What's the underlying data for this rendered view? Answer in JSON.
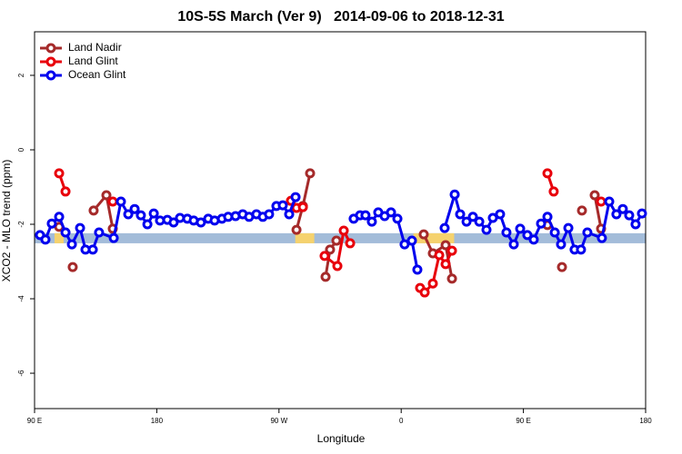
{
  "chart_data": {
    "type": "line",
    "title": "10S-5S March (Ver 9)   2014-09-06 to 2018-12-31",
    "xlabel": "Longitude",
    "ylabel": "XCO2 - MLO trend (ppm)",
    "xlim": [
      90,
      540
    ],
    "ylim": [
      -6.95,
      3.17
    ],
    "xticks": [
      {
        "value": 90,
        "label": "90 E"
      },
      {
        "value": 180,
        "label": "180"
      },
      {
        "value": 270,
        "label": "90 W"
      },
      {
        "value": 360,
        "label": "0"
      },
      {
        "value": 450,
        "label": "90 E"
      },
      {
        "value": 540,
        "label": "180"
      }
    ],
    "yticks": [
      2,
      0,
      -2,
      -4,
      -6
    ],
    "legend": "top-left",
    "band": {
      "range": [
        -2.51,
        -2.24
      ],
      "color": "#a3bcd9"
    },
    "highlights": [
      {
        "x": [
          104.7,
          111.4
        ],
        "color": "#f5d26e"
      },
      {
        "x": [
          282,
          296
        ],
        "color": "#f5d26e"
      },
      {
        "x": [
          369,
          399
        ],
        "color": "#f5d26e"
      }
    ],
    "series": [
      {
        "name": "Land Nadir",
        "color": "#a52a2a",
        "x": [
          108.1,
          null,
          118.1,
          null,
          133.5,
          142.9,
          147.6,
          null,
          282.9,
          287.6,
          292.9,
          null,
          304.3,
          307.6,
          312.3,
          null,
          376.6,
          383.3,
          392.7,
          397.4,
          null,
          467.7,
          null,
          478.4,
          null,
          493.1,
          null,
          502.5,
          507.2
        ],
        "values": [
          -2.07,
          null,
          -3.15,
          null,
          -1.63,
          -1.22,
          -2.12,
          null,
          -2.15,
          -1.51,
          -0.63,
          null,
          -3.41,
          -2.68,
          -2.44,
          null,
          -2.27,
          -2.78,
          -2.56,
          -3.46,
          null,
          -2.02,
          null,
          -3.15,
          null,
          -1.63,
          null,
          -1.22,
          -2.12
        ]
      },
      {
        "name": "Land Glint",
        "color": "#e8000b",
        "x": [
          108.1,
          112.8,
          null,
          147.6,
          null,
          278.8,
          282.9,
          287.6,
          null,
          303.6,
          313.0,
          317.7,
          322.4,
          null,
          373.9,
          377.3,
          383.3,
          388.0,
          392.7,
          397.4,
          null,
          467.7,
          472.3,
          null,
          507.2
        ],
        "values": [
          -0.63,
          -1.12,
          null,
          -1.39,
          null,
          -1.37,
          -1.56,
          -1.54,
          null,
          -2.85,
          -3.12,
          -2.17,
          -2.51,
          null,
          -3.71,
          -3.83,
          -3.59,
          -2.83,
          -3.07,
          -2.71,
          null,
          -0.63,
          -1.12,
          null,
          -1.39
        ]
      },
      {
        "name": "Ocean Glint",
        "color": "#0000ee",
        "x": [
          94.0,
          98.0,
          102.7,
          108.1,
          112.8,
          117.5,
          123.5,
          127.5,
          132.9,
          137.5,
          148.3,
          153.6,
          159.0,
          163.7,
          168.3,
          173.1,
          177.8,
          182.4,
          187.8,
          192.4,
          197.1,
          202.5,
          207.2,
          212.5,
          217.9,
          222.6,
          228.0,
          232.6,
          238.0,
          243.3,
          248.0,
          253.4,
          258.1,
          262.7,
          268.1,
          272.8,
          277.5,
          282.2,
          null,
          325.0,
          329.7,
          333.7,
          338.4,
          343.1,
          347.8,
          352.5,
          357.2,
          362.5,
          367.9,
          371.9,
          null,
          392.0,
          399.4,
          403.4,
          408.1,
          412.8,
          417.5,
          422.8,
          427.5,
          432.8,
          437.5,
          442.9,
          447.6,
          452.9,
          457.6,
          463.0,
          467.7,
          473.1,
          477.7,
          483.1,
          487.7,
          492.4,
          497.1,
          507.8,
          513.2,
          518.5,
          523.2,
          527.9,
          532.6,
          537.3
        ],
        "values": [
          -2.29,
          -2.41,
          -1.98,
          -1.8,
          -2.22,
          -2.54,
          -2.1,
          -2.68,
          -2.68,
          -2.22,
          -2.37,
          -1.39,
          -1.73,
          -1.59,
          -1.76,
          -2.0,
          -1.71,
          -1.9,
          -1.88,
          -1.95,
          -1.83,
          -1.85,
          -1.9,
          -1.95,
          -1.85,
          -1.9,
          -1.85,
          -1.8,
          -1.78,
          -1.73,
          -1.8,
          -1.73,
          -1.8,
          -1.73,
          -1.51,
          -1.49,
          -1.73,
          -1.27,
          null,
          -1.85,
          -1.76,
          -1.76,
          -1.93,
          -1.68,
          -1.78,
          -1.68,
          -1.85,
          -2.54,
          -2.44,
          -3.22,
          null,
          -2.1,
          -1.2,
          -1.73,
          -1.93,
          -1.8,
          -1.93,
          -2.15,
          -1.83,
          -1.73,
          -2.22,
          -2.54,
          -2.12,
          -2.29,
          -2.41,
          -1.98,
          -1.8,
          -2.22,
          -2.54,
          -2.1,
          -2.68,
          -2.68,
          -2.22,
          -2.37,
          -1.39,
          -1.73,
          -1.59,
          -1.76,
          -2.0,
          -1.71
        ]
      }
    ]
  }
}
